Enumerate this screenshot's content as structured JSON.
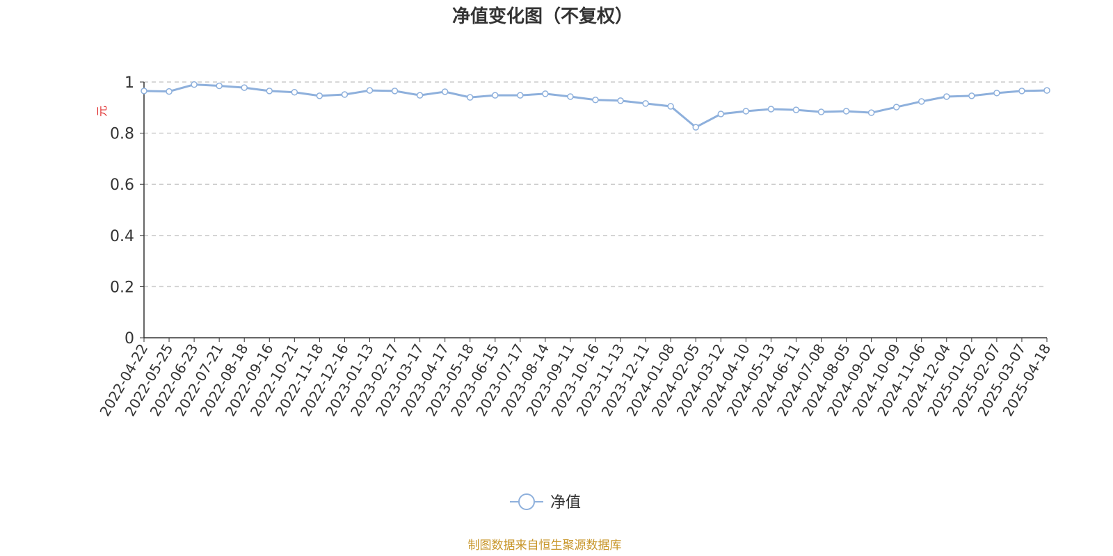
{
  "chart_data": {
    "type": "line",
    "title": "净值变化图（不复权）",
    "y_label": "元",
    "source": "制图数据来自恒生聚源数据库",
    "categories": [
      "2022-04-22",
      "2022-05-25",
      "2022-06-23",
      "2022-07-21",
      "2022-08-18",
      "2022-09-16",
      "2022-10-21",
      "2022-11-18",
      "2022-12-16",
      "2023-01-13",
      "2023-02-17",
      "2023-03-17",
      "2023-04-17",
      "2023-05-18",
      "2023-06-15",
      "2023-07-17",
      "2023-08-14",
      "2023-09-11",
      "2023-10-16",
      "2023-11-13",
      "2023-12-11",
      "2024-01-08",
      "2024-02-05",
      "2024-03-12",
      "2024-04-10",
      "2024-05-13",
      "2024-06-11",
      "2024-07-08",
      "2024-08-05",
      "2024-09-02",
      "2024-10-09",
      "2024-11-06",
      "2024-12-04",
      "2025-01-02",
      "2025-02-07",
      "2025-03-07",
      "2025-04-18"
    ],
    "series": [
      {
        "name": "净值",
        "color": "#8eb0dc",
        "values": [
          0.965,
          0.963,
          0.99,
          0.985,
          0.978,
          0.965,
          0.96,
          0.946,
          0.951,
          0.967,
          0.965,
          0.948,
          0.962,
          0.94,
          0.948,
          0.948,
          0.954,
          0.943,
          0.93,
          0.927,
          0.916,
          0.905,
          0.823,
          0.875,
          0.886,
          0.894,
          0.891,
          0.883,
          0.886,
          0.88,
          0.902,
          0.924,
          0.943,
          0.946,
          0.957,
          0.965,
          0.967
        ]
      }
    ],
    "ylim": [
      0,
      1
    ],
    "yticks": [
      0,
      0.2,
      0.4,
      0.6,
      0.8,
      1
    ],
    "grid": true
  }
}
